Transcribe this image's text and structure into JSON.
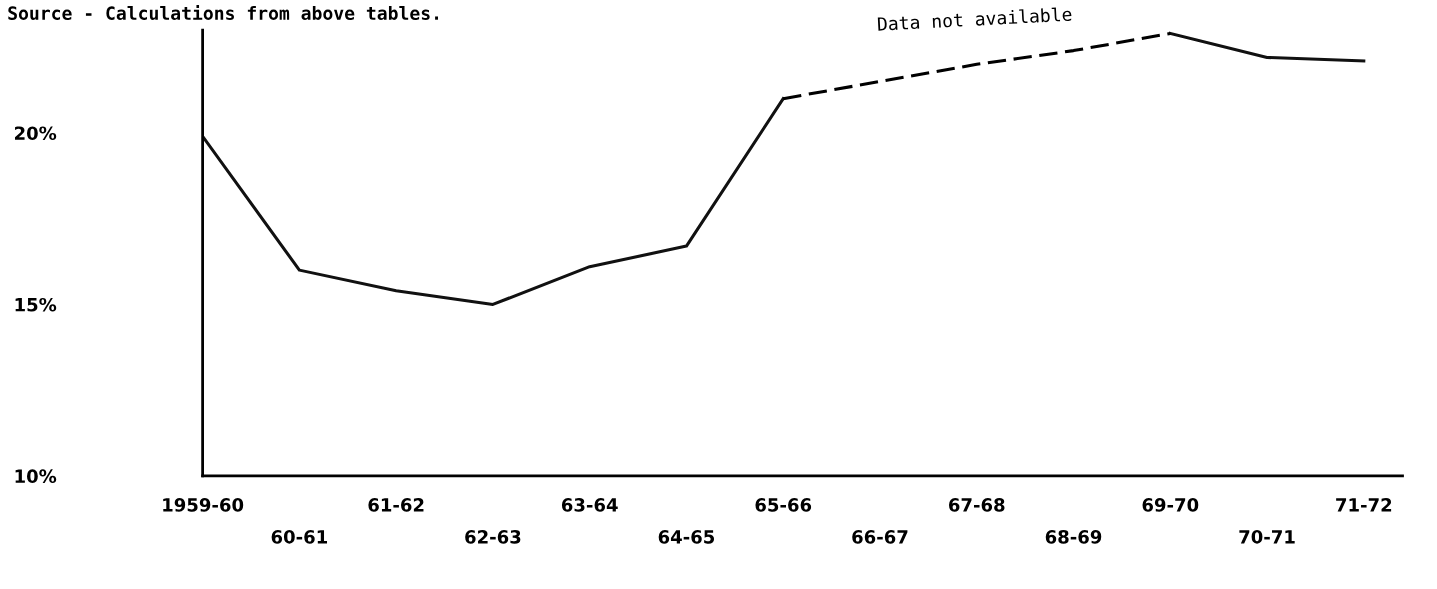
{
  "chart_data": {
    "type": "line",
    "categories": [
      "1959-60",
      "60-61",
      "61-62",
      "62-63",
      "63-64",
      "64-65",
      "65-66",
      "66-67",
      "67-68",
      "68-69",
      "69-70",
      "70-71",
      "71-72"
    ],
    "series": [
      {
        "color": "#111111",
        "line_style": "solid",
        "values": [
          19.9,
          16.0,
          15.4,
          15.0,
          16.1,
          16.7,
          21.0,
          null,
          null,
          null,
          22.9,
          22.2,
          22.1
        ]
      },
      {
        "color": "#000000",
        "line_style": "dashed",
        "values": [
          null,
          null,
          null,
          null,
          null,
          null,
          21.0,
          21.5,
          22.0,
          22.4,
          22.9,
          null,
          null
        ]
      }
    ],
    "ylim": [
      10,
      23
    ],
    "yticks": [
      {
        "value": 10,
        "label": "10%"
      },
      {
        "value": 15,
        "label": "15%"
      },
      {
        "value": 20,
        "label": "20%"
      }
    ],
    "annotations": [
      "Source - Calculations from above tables.",
      "Data not available"
    ],
    "grid": false,
    "legend": false,
    "marker": "none"
  }
}
